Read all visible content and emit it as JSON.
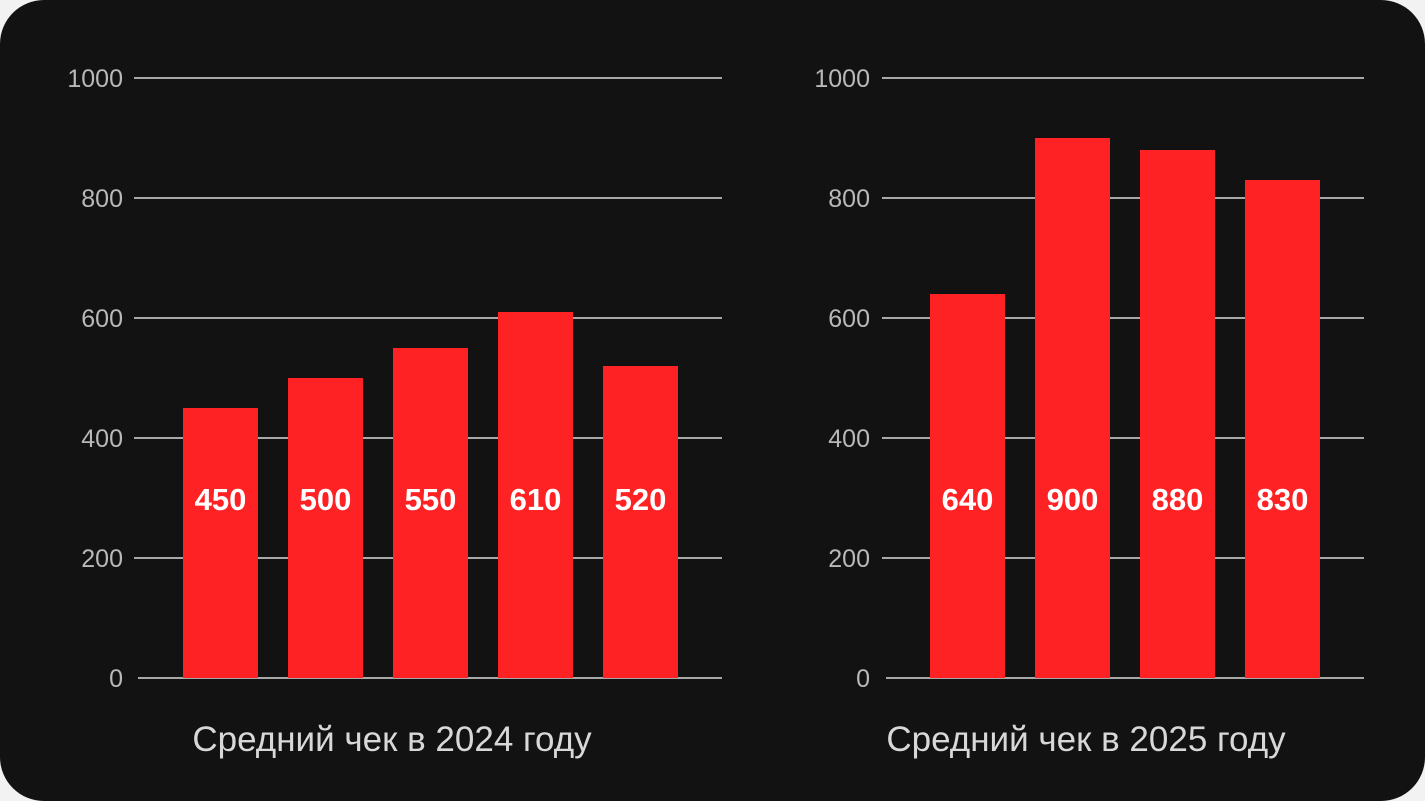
{
  "colors": {
    "background": "#121212",
    "bar": "#ff2224",
    "grid": "#d9d9d9",
    "tick_text": "#b8b8b8",
    "title_text": "#d8d8d8",
    "value_text": "#ffffff"
  },
  "chart_data": [
    {
      "type": "bar",
      "title": "Средний чек в 2024 году",
      "values": [
        450,
        500,
        550,
        610,
        520
      ],
      "value_labels": [
        "450",
        "500",
        "550",
        "610",
        "520"
      ],
      "yticks": [
        0,
        200,
        400,
        600,
        800,
        1000
      ],
      "ytick_labels": [
        "0",
        "200",
        "400",
        "600",
        "800",
        "1000"
      ],
      "ylim": [
        0,
        1000
      ],
      "grid": true,
      "legend": "none"
    },
    {
      "type": "bar",
      "title": "Средний чек в 2025 году",
      "values": [
        640,
        900,
        880,
        830
      ],
      "value_labels": [
        "640",
        "900",
        "880",
        "830"
      ],
      "yticks": [
        0,
        200,
        400,
        600,
        800,
        1000
      ],
      "ytick_labels": [
        "0",
        "200",
        "400",
        "600",
        "800",
        "1000"
      ],
      "ylim": [
        0,
        1000
      ],
      "grid": true,
      "legend": "none"
    }
  ]
}
